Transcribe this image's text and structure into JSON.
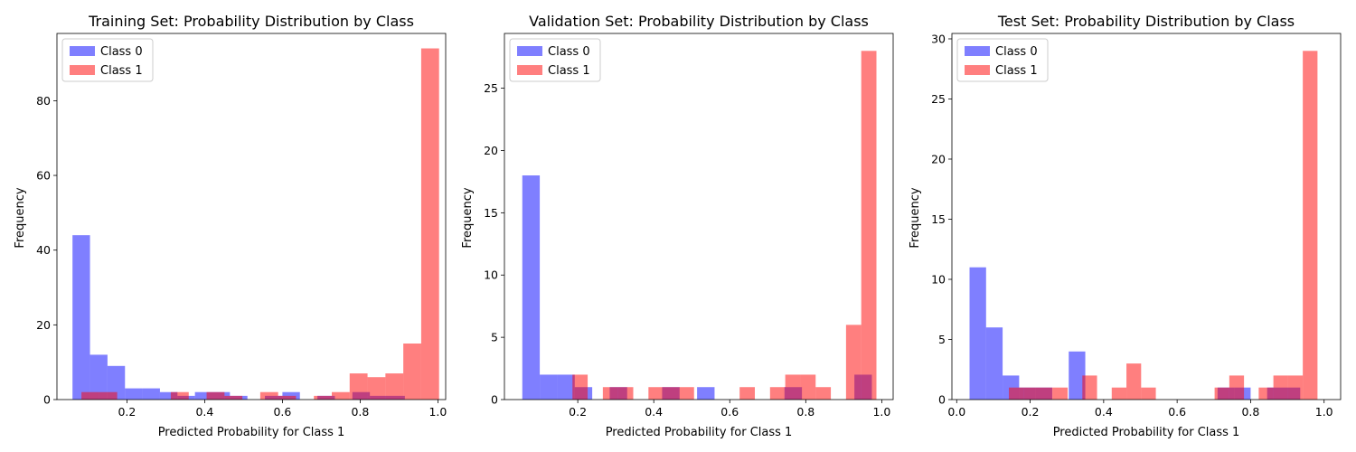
{
  "chart_data": [
    {
      "type": "histogram",
      "title": "Training Set: Probability Distribution by Class",
      "xlabel": "Predicted Probability for Class 1",
      "ylabel": "Frequency",
      "xlim": [
        0.02,
        1.02
      ],
      "ylim": [
        0,
        98
      ],
      "xticks": [
        0.2,
        0.4,
        0.6,
        0.8,
        1.0
      ],
      "yticks": [
        0,
        20,
        40,
        60,
        80
      ],
      "legend_position": "upper left",
      "series": [
        {
          "name": "Class 0",
          "color": "#0000ff",
          "opacity": 0.5,
          "bins": [
            [
              0.06,
              0.105,
              44
            ],
            [
              0.105,
              0.15,
              12
            ],
            [
              0.15,
              0.195,
              9
            ],
            [
              0.195,
              0.24,
              3
            ],
            [
              0.24,
              0.285,
              3
            ],
            [
              0.285,
              0.33,
              2
            ],
            [
              0.33,
              0.375,
              1
            ],
            [
              0.375,
              0.42,
              2
            ],
            [
              0.42,
              0.465,
              2
            ],
            [
              0.465,
              0.51,
              1
            ],
            [
              0.555,
              0.6,
              1
            ],
            [
              0.6,
              0.645,
              2
            ],
            [
              0.69,
              0.735,
              1
            ],
            [
              0.78,
              0.825,
              2
            ],
            [
              0.825,
              0.87,
              1
            ],
            [
              0.87,
              0.915,
              1
            ]
          ]
        },
        {
          "name": "Class 1",
          "color": "#ff0000",
          "opacity": 0.5,
          "bins": [
            [
              0.083,
              0.129,
              2
            ],
            [
              0.129,
              0.175,
              2
            ],
            [
              0.313,
              0.359,
              2
            ],
            [
              0.405,
              0.451,
              2
            ],
            [
              0.451,
              0.497,
              1
            ],
            [
              0.543,
              0.589,
              2
            ],
            [
              0.589,
              0.635,
              1
            ],
            [
              0.681,
              0.727,
              1
            ],
            [
              0.727,
              0.773,
              2
            ],
            [
              0.773,
              0.819,
              7
            ],
            [
              0.819,
              0.865,
              6
            ],
            [
              0.865,
              0.911,
              7
            ],
            [
              0.911,
              0.957,
              15
            ],
            [
              0.957,
              1.003,
              94
            ]
          ]
        }
      ]
    },
    {
      "type": "histogram",
      "title": "Validation Set: Probability Distribution by Class",
      "xlabel": "Predicted Probability for Class 1",
      "ylabel": "Frequency",
      "xlim": [
        0.007,
        1.03
      ],
      "ylim": [
        0,
        29.4
      ],
      "xticks": [
        0.2,
        0.4,
        0.6,
        0.8,
        1.0
      ],
      "yticks": [
        0,
        5,
        10,
        15,
        20,
        25
      ],
      "legend_position": "upper left",
      "series": [
        {
          "name": "Class 0",
          "color": "#0000ff",
          "opacity": 0.5,
          "bins": [
            [
              0.054,
              0.1,
              18
            ],
            [
              0.1,
              0.146,
              2
            ],
            [
              0.146,
              0.192,
              2
            ],
            [
              0.192,
              0.238,
              1
            ],
            [
              0.284,
              0.33,
              1
            ],
            [
              0.422,
              0.468,
              1
            ],
            [
              0.514,
              0.56,
              1
            ],
            [
              0.744,
              0.79,
              1
            ],
            [
              0.928,
              0.974,
              2
            ]
          ]
        },
        {
          "name": "Class 1",
          "color": "#ff0000",
          "opacity": 0.5,
          "bins": [
            [
              0.186,
              0.226,
              2
            ],
            [
              0.266,
              0.306,
              1
            ],
            [
              0.306,
              0.346,
              1
            ],
            [
              0.386,
              0.426,
              1
            ],
            [
              0.426,
              0.466,
              1
            ],
            [
              0.466,
              0.506,
              1
            ],
            [
              0.626,
              0.666,
              1
            ],
            [
              0.706,
              0.746,
              1
            ],
            [
              0.746,
              0.786,
              2
            ],
            [
              0.786,
              0.826,
              2
            ],
            [
              0.826,
              0.866,
              1
            ],
            [
              0.906,
              0.946,
              6
            ],
            [
              0.946,
              0.986,
              28
            ]
          ]
        }
      ]
    },
    {
      "type": "histogram",
      "title": "Test Set: Probability Distribution by Class",
      "xlabel": "Predicted Probability for Class 1",
      "ylabel": "Frequency",
      "xlim": [
        -0.013,
        1.045
      ],
      "ylim": [
        0,
        30.45
      ],
      "xticks": [
        0.0,
        0.2,
        0.4,
        0.6,
        0.8,
        1.0
      ],
      "yticks": [
        0,
        5,
        10,
        15,
        20,
        25,
        30
      ],
      "legend_position": "upper left",
      "series": [
        {
          "name": "Class 0",
          "color": "#0000ff",
          "opacity": 0.5,
          "bins": [
            [
              0.035,
              0.08,
              11
            ],
            [
              0.08,
              0.125,
              6
            ],
            [
              0.125,
              0.17,
              2
            ],
            [
              0.17,
              0.215,
              1
            ],
            [
              0.215,
              0.26,
              1
            ],
            [
              0.305,
              0.35,
              4
            ],
            [
              0.71,
              0.755,
              1
            ],
            [
              0.755,
              0.8,
              1
            ],
            [
              0.845,
              0.89,
              1
            ],
            [
              0.89,
              0.935,
              1
            ]
          ]
        },
        {
          "name": "Class 1",
          "color": "#ff0000",
          "opacity": 0.5,
          "bins": [
            [
              0.142,
              0.182,
              1
            ],
            [
              0.182,
              0.222,
              1
            ],
            [
              0.222,
              0.262,
              1
            ],
            [
              0.262,
              0.302,
              1
            ],
            [
              0.342,
              0.382,
              2
            ],
            [
              0.422,
              0.462,
              1
            ],
            [
              0.462,
              0.502,
              3
            ],
            [
              0.502,
              0.542,
              1
            ],
            [
              0.702,
              0.742,
              1
            ],
            [
              0.742,
              0.782,
              2
            ],
            [
              0.822,
              0.862,
              1
            ],
            [
              0.862,
              0.902,
              2
            ],
            [
              0.902,
              0.942,
              2
            ],
            [
              0.942,
              0.982,
              29
            ]
          ]
        }
      ]
    }
  ]
}
